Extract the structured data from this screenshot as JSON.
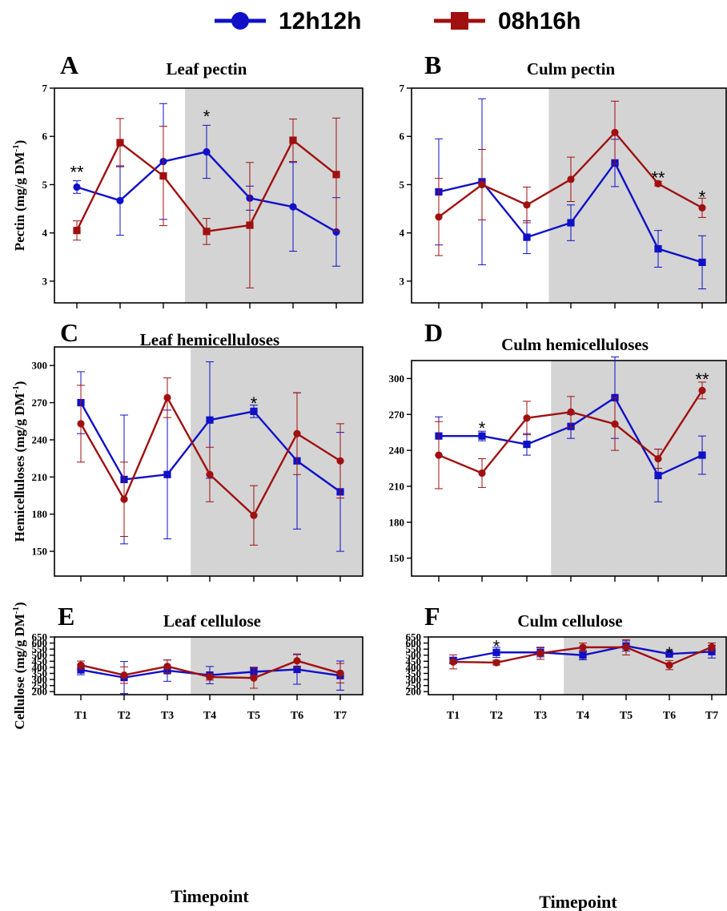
{
  "legend": [
    {
      "label": "12h12h",
      "color": "#1010c8",
      "marker": "circle"
    },
    {
      "label": "08h16h",
      "color": "#a01010",
      "marker": "square"
    }
  ],
  "chart_data": [
    {
      "type": "line",
      "letter": "A",
      "title": "Leaf pectin",
      "ylabel": "Pectin (mg/g DM",
      "ylabel_sup": "-1",
      "ylabel_suffix": ")",
      "xlabel": "",
      "x": [
        "T1",
        "T2",
        "T3",
        "T4",
        "T5",
        "T6",
        "T7"
      ],
      "ylim": [
        2.55,
        7
      ],
      "yticks": [
        3,
        4,
        5,
        6,
        7
      ],
      "shade_from_index": 2.5,
      "series": [
        {
          "name": "12h12h",
          "color": "#1010c8",
          "marker": "circle",
          "values": [
            4.95,
            4.67,
            5.48,
            5.68,
            4.72,
            4.54,
            4.02
          ],
          "err": [
            0.13,
            0.72,
            1.2,
            0.55,
            0.25,
            0.92,
            0.71
          ]
        },
        {
          "name": "08h16h",
          "color": "#a01010",
          "marker": "square",
          "values": [
            4.05,
            5.87,
            5.18,
            4.03,
            4.16,
            5.92,
            5.21
          ],
          "err": [
            0.2,
            0.5,
            1.03,
            0.27,
            1.3,
            0.44,
            1.17
          ]
        }
      ],
      "annotations": [
        {
          "text": "**",
          "x_index": 0,
          "y": 5.3
        },
        {
          "text": "*",
          "x_index": 3,
          "y": 6.45
        }
      ]
    },
    {
      "type": "line",
      "letter": "B",
      "title": "Culm pectin",
      "ylabel": "",
      "ylabel_sup": "",
      "ylabel_suffix": "",
      "xlabel": "",
      "x": [
        "T1",
        "T2",
        "T3",
        "T4",
        "T5",
        "T6",
        "T7"
      ],
      "ylim": [
        2.55,
        7
      ],
      "yticks": [
        3,
        4,
        5,
        6,
        7
      ],
      "shade_from_index": 2.5,
      "series": [
        {
          "name": "12h12h",
          "color": "#1010c8",
          "marker": "square",
          "values": [
            4.85,
            5.06,
            3.91,
            4.21,
            5.45,
            3.67,
            3.39
          ],
          "err": [
            1.1,
            1.72,
            0.34,
            0.37,
            0.49,
            0.38,
            0.55
          ]
        },
        {
          "name": "08h16h",
          "color": "#a01010",
          "marker": "circle",
          "values": [
            4.33,
            5.0,
            4.58,
            5.11,
            6.08,
            5.02,
            4.52
          ],
          "err": [
            0.8,
            0.73,
            0.37,
            0.46,
            0.65,
            0.05,
            0.2
          ]
        }
      ],
      "annotations": [
        {
          "text": "**",
          "x_index": 5,
          "y": 5.18
        },
        {
          "text": "*",
          "x_index": 6,
          "y": 4.78
        }
      ]
    },
    {
      "type": "line",
      "letter": "C",
      "title": "Leaf hemicelluloses",
      "ylabel": "Hemicelluloses (mg/g DM",
      "ylabel_sup": "-1",
      "ylabel_suffix": ")",
      "xlabel": "",
      "x": [
        "T1",
        "T2",
        "T3",
        "T4",
        "T5",
        "T6",
        "T7"
      ],
      "ylim": [
        130,
        315
      ],
      "yticks": [
        150,
        180,
        210,
        240,
        270,
        300
      ],
      "shade_from_index": 2.55,
      "series": [
        {
          "name": "12h12h",
          "color": "#1010c8",
          "marker": "square",
          "values": [
            270,
            208,
            212,
            256,
            263,
            223,
            198
          ],
          "err": [
            25,
            52,
            52,
            47,
            5,
            55,
            48
          ]
        },
        {
          "name": "08h16h",
          "color": "#a01010",
          "marker": "circle",
          "values": [
            253,
            192,
            274,
            212,
            179,
            245,
            223
          ],
          "err": [
            31,
            30,
            16,
            22,
            24,
            33,
            30
          ]
        }
      ],
      "annotations": [
        {
          "text": "*",
          "x_index": 4,
          "y": 271
        }
      ]
    },
    {
      "type": "line",
      "letter": "D",
      "title": "Culm hemicelluloses",
      "ylabel": "",
      "ylabel_sup": "",
      "ylabel_suffix": "",
      "xlabel": "",
      "x": [
        "T1",
        "T2",
        "T3",
        "T4",
        "T5",
        "T6",
        "T7"
      ],
      "ylim": [
        135,
        315
      ],
      "yticks": [
        150,
        180,
        210,
        240,
        270,
        300
      ],
      "shade_from_index": 2.55,
      "series": [
        {
          "name": "12h12h",
          "color": "#1010c8",
          "marker": "square",
          "values": [
            252,
            252,
            245,
            260,
            284,
            219,
            236
          ],
          "err": [
            16,
            4,
            9,
            10,
            34,
            22,
            16
          ]
        },
        {
          "name": "08h16h",
          "color": "#a01010",
          "marker": "circle",
          "values": [
            236,
            221,
            267,
            272,
            262,
            233,
            290
          ],
          "err": [
            28,
            12,
            14,
            13,
            22,
            8,
            7
          ]
        }
      ],
      "annotations": [
        {
          "text": "*",
          "x_index": 1,
          "y": 260
        },
        {
          "text": "**",
          "x_index": 6,
          "y": 301
        }
      ]
    },
    {
      "type": "line",
      "letter": "E",
      "title": "Leaf cellulose",
      "ylabel": "Cellulose (mg/g DM",
      "ylabel_sup": "-1",
      "ylabel_suffix": ")",
      "xlabel": "Timepoint",
      "x": [
        "T1",
        "T2",
        "T3",
        "T4",
        "T5",
        "T6",
        "T7"
      ],
      "ylim": [
        175,
        650
      ],
      "yticks": [
        200,
        250,
        300,
        350,
        400,
        450,
        500,
        550,
        600,
        650
      ],
      "shade_from_index": 2.55,
      "series": [
        {
          "name": "12h12h",
          "color": "#1010c8",
          "marker": "square",
          "values": [
            379,
            316,
            373,
            336,
            363,
            383,
            332
          ],
          "err": [
            40,
            132,
            88,
            71,
            38,
            122,
            120
          ]
        },
        {
          "name": "08h16h",
          "color": "#a01010",
          "marker": "circle",
          "values": [
            418,
            336,
            408,
            321,
            312,
            454,
            352
          ],
          "err": [
            34,
            68,
            52,
            26,
            84,
            56,
            80
          ]
        }
      ],
      "annotations": []
    },
    {
      "type": "line",
      "letter": "F",
      "title": "Culm cellulose",
      "ylabel": "",
      "ylabel_sup": "",
      "ylabel_suffix": "",
      "xlabel": "Timepoint",
      "x": [
        "T1",
        "T2",
        "T3",
        "T4",
        "T5",
        "T6",
        "T7"
      ],
      "ylim": [
        175,
        650
      ],
      "yticks": [
        200,
        250,
        300,
        350,
        400,
        450,
        500,
        550,
        600,
        650
      ],
      "shade_from_index": 2.55,
      "series": [
        {
          "name": "12h12h",
          "color": "#1010c8",
          "marker": "square",
          "values": [
            457,
            523,
            523,
            500,
            576,
            510,
            529
          ],
          "err": [
            25,
            42,
            37,
            38,
            42,
            9,
            52
          ]
        },
        {
          "name": "08h16h",
          "color": "#a01010",
          "marker": "circle",
          "values": [
            445,
            439,
            516,
            565,
            565,
            418,
            568
          ],
          "err": [
            58,
            20,
            50,
            35,
            63,
            37,
            33
          ]
        }
      ],
      "annotations": [
        {
          "text": "*",
          "x_index": 1,
          "y": 588
        },
        {
          "text": "*",
          "x_index": 5,
          "y": 530
        }
      ]
    }
  ]
}
